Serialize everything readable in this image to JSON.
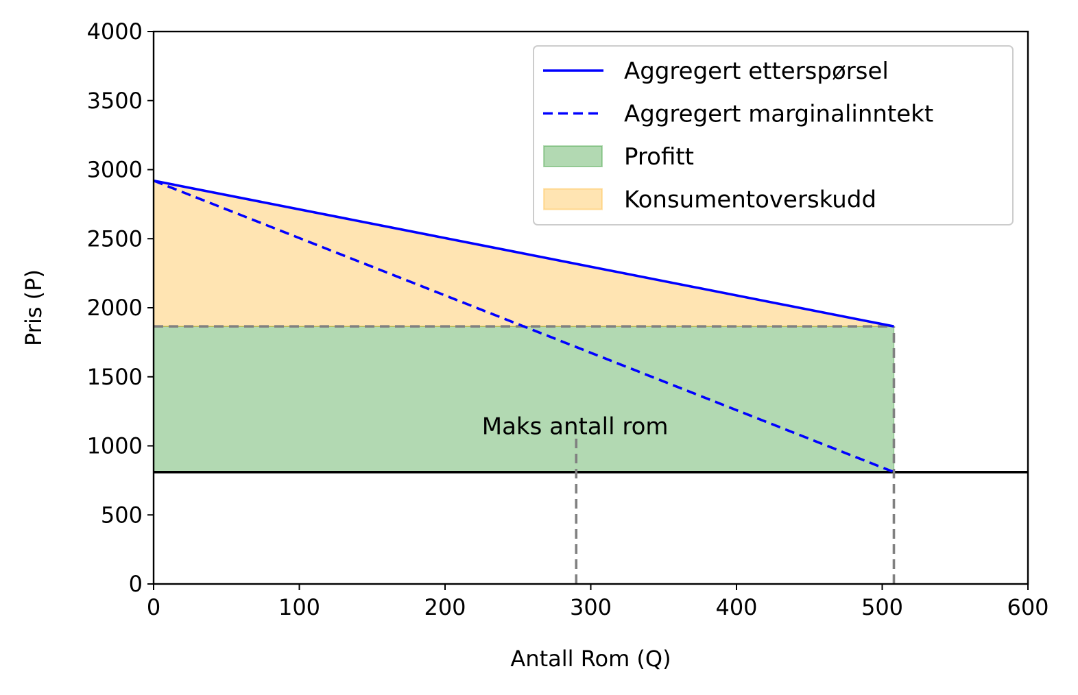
{
  "chart_data": {
    "type": "line",
    "title": "",
    "xlabel": "Antall Rom (Q)",
    "ylabel": "Pris (P)",
    "xlim": [
      0,
      600
    ],
    "ylim": [
      0,
      4000
    ],
    "x_ticks": [
      0,
      100,
      200,
      300,
      400,
      500,
      600
    ],
    "y_ticks": [
      0,
      500,
      1000,
      1500,
      2000,
      2500,
      3000,
      3500,
      4000
    ],
    "grid": false,
    "legend_position": "top-right",
    "series": [
      {
        "name": "Aggregert etterspørsel",
        "style": "solid",
        "color": "#0000ff",
        "x": [
          0,
          508
        ],
        "y": [
          2920,
          1865
        ]
      },
      {
        "name": "Aggregert marginalinntekt",
        "style": "dashed",
        "color": "#0000ff",
        "x": [
          0,
          508
        ],
        "y": [
          2920,
          810
        ]
      }
    ],
    "areas": [
      {
        "name": "Profitt",
        "color": "#008000",
        "opacity": 0.3,
        "x": [
          0,
          508
        ],
        "y_lower": [
          810,
          810
        ],
        "y_upper": [
          1865,
          1865
        ]
      },
      {
        "name": "Konsumentoverskudd",
        "color": "#ffa500",
        "opacity": 0.3,
        "x": [
          0,
          508
        ],
        "y_lower": [
          1865,
          1865
        ],
        "y_upper": [
          2920,
          1865
        ]
      }
    ],
    "reference_lines": [
      {
        "kind": "horizontal",
        "y": 810,
        "x_from": 0,
        "x_to": 600,
        "color": "#000000",
        "style": "solid"
      },
      {
        "kind": "horizontal",
        "y": 1865,
        "x_from": 0,
        "x_to": 508,
        "color": "#808080",
        "style": "dashed"
      },
      {
        "kind": "vertical",
        "x": 508,
        "y_from": 0,
        "y_to": 1865,
        "color": "#808080",
        "style": "dashed"
      },
      {
        "kind": "vertical",
        "x": 290,
        "y_from": 0,
        "y_to": 1070,
        "color": "#808080",
        "style": "dashed"
      }
    ],
    "annotations": [
      {
        "text": "Maks antall rom",
        "x": 230,
        "y": 1100
      }
    ]
  }
}
